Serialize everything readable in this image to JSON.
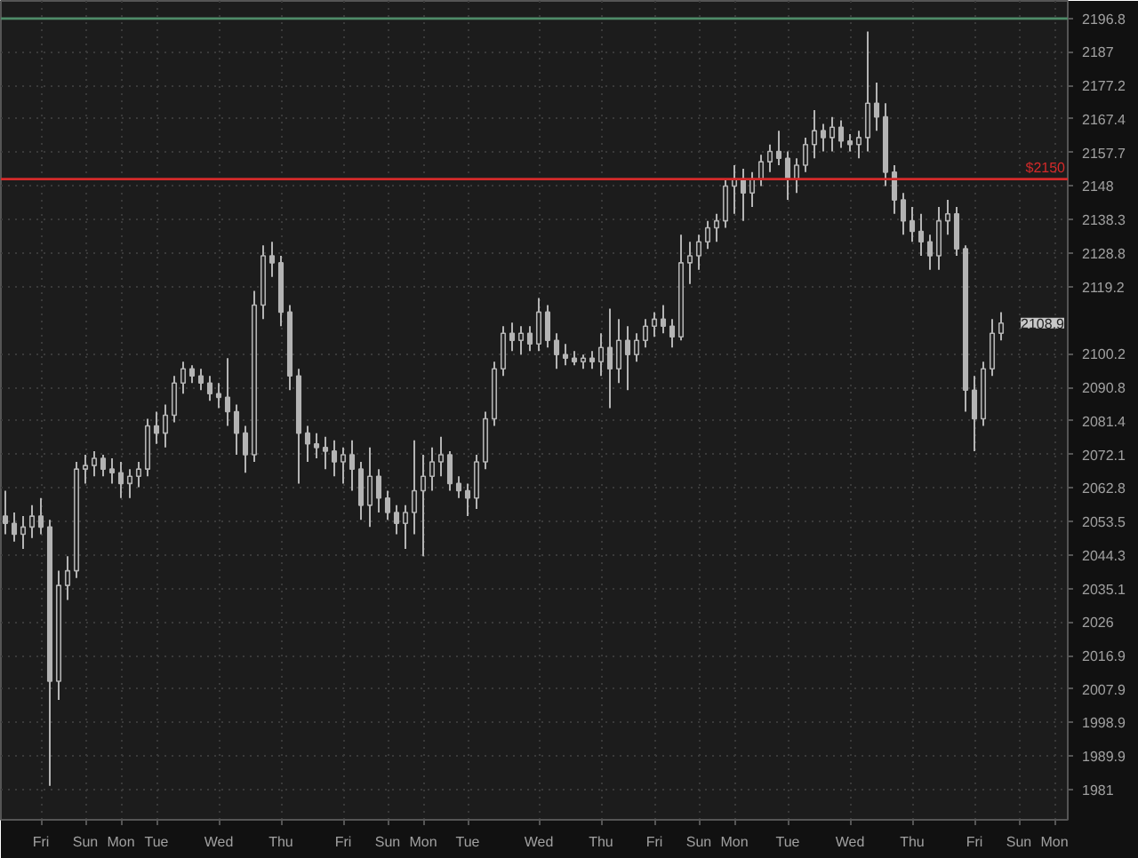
{
  "chart_data": {
    "type": "candlestick",
    "color": "#b4b4b4",
    "log": true,
    "grid": true,
    "categories": [
      null,
      null,
      null,
      null,
      "Fri",
      null,
      null,
      null,
      null,
      "Sun",
      null,
      null,
      null,
      "Mon",
      null,
      null,
      null,
      "Tue",
      null,
      null,
      null,
      null,
      null,
      null,
      "Wed",
      null,
      null,
      null,
      null,
      null,
      null,
      "Thu",
      null,
      null,
      null,
      null,
      null,
      null,
      "Fri",
      null,
      null,
      null,
      null,
      "Sun",
      null,
      null,
      null,
      "Mon",
      null,
      null,
      null,
      null,
      "Tue",
      null,
      null,
      null,
      null,
      null,
      null,
      null,
      "Wed",
      null,
      null,
      null,
      null,
      null,
      null,
      "Thu",
      null,
      null,
      null,
      null,
      null,
      "Fri",
      null,
      null,
      null,
      null,
      "Sun",
      null,
      null,
      null,
      "Mon",
      null,
      null,
      null,
      null,
      null,
      "Tue",
      null,
      null,
      null,
      null,
      null,
      null,
      "Wed",
      null,
      null,
      null,
      null,
      null,
      null,
      "Thu",
      null,
      null,
      null,
      null,
      null,
      null,
      "Fri",
      null,
      null,
      null,
      null,
      "Sun",
      null,
      null,
      null,
      "Mon",
      null
    ],
    "ohlc": [
      [
        2055,
        2062,
        2050,
        2053
      ],
      [
        2053,
        2056,
        2048,
        2050
      ],
      [
        2050,
        2055,
        2046,
        2052
      ],
      [
        2052,
        2058,
        2049,
        2055
      ],
      [
        2055,
        2060,
        2050,
        2052
      ],
      [
        2052,
        2054,
        1982,
        2010
      ],
      [
        2010,
        2040,
        2005,
        2036
      ],
      [
        2036,
        2044,
        2032,
        2040
      ],
      [
        2040,
        2070,
        2038,
        2068
      ],
      [
        2068,
        2072,
        2064,
        2069
      ],
      [
        2069,
        2073,
        2066,
        2071
      ],
      [
        2071,
        2072,
        2066,
        2068
      ],
      [
        2068,
        2071,
        2064,
        2067
      ],
      [
        2067,
        2070,
        2060,
        2064
      ],
      [
        2064,
        2068,
        2060,
        2066
      ],
      [
        2066,
        2070,
        2063,
        2068
      ],
      [
        2068,
        2082,
        2066,
        2080
      ],
      [
        2080,
        2084,
        2075,
        2078
      ],
      [
        2078,
        2086,
        2074,
        2083
      ],
      [
        2083,
        2094,
        2081,
        2092
      ],
      [
        2092,
        2098,
        2089,
        2096
      ],
      [
        2096,
        2097,
        2092,
        2094
      ],
      [
        2094,
        2096,
        2090,
        2092
      ],
      [
        2092,
        2094,
        2087,
        2089
      ],
      [
        2089,
        2092,
        2085,
        2088
      ],
      [
        2088,
        2099,
        2080,
        2084
      ],
      [
        2084,
        2086,
        2072,
        2078
      ],
      [
        2078,
        2080,
        2067,
        2072
      ],
      [
        2072,
        2118,
        2070,
        2114
      ],
      [
        2114,
        2131,
        2110,
        2128
      ],
      [
        2128,
        2132,
        2122,
        2126
      ],
      [
        2126,
        2128,
        2108,
        2112
      ],
      [
        2112,
        2114,
        2090,
        2094
      ],
      [
        2094,
        2096,
        2064,
        2078
      ],
      [
        2078,
        2080,
        2070,
        2075
      ],
      [
        2075,
        2078,
        2071,
        2074
      ],
      [
        2074,
        2077,
        2068,
        2073
      ],
      [
        2073,
        2076,
        2066,
        2070
      ],
      [
        2070,
        2074,
        2064,
        2072
      ],
      [
        2072,
        2076,
        2062,
        2068
      ],
      [
        2068,
        2070,
        2054,
        2058
      ],
      [
        2058,
        2074,
        2052,
        2066
      ],
      [
        2066,
        2068,
        2056,
        2060
      ],
      [
        2060,
        2062,
        2054,
        2056
      ],
      [
        2056,
        2058,
        2050,
        2053
      ],
      [
        2053,
        2058,
        2046,
        2056
      ],
      [
        2056,
        2076,
        2050,
        2062
      ],
      [
        2062,
        2072,
        2044,
        2066
      ],
      [
        2066,
        2074,
        2062,
        2070
      ],
      [
        2070,
        2077,
        2066,
        2072
      ],
      [
        2072,
        2073,
        2062,
        2064
      ],
      [
        2064,
        2066,
        2060,
        2062
      ],
      [
        2062,
        2064,
        2055,
        2060
      ],
      [
        2060,
        2072,
        2057,
        2070
      ],
      [
        2070,
        2084,
        2068,
        2082
      ],
      [
        2082,
        2098,
        2080,
        2096
      ],
      [
        2096,
        2108,
        2094,
        2106
      ],
      [
        2106,
        2109,
        2101,
        2104
      ],
      [
        2104,
        2108,
        2100,
        2106
      ],
      [
        2106,
        2108,
        2101,
        2103
      ],
      [
        2103,
        2116,
        2101,
        2112
      ],
      [
        2112,
        2114,
        2102,
        2104
      ],
      [
        2104,
        2106,
        2096,
        2100
      ],
      [
        2100,
        2103,
        2097,
        2099
      ],
      [
        2099,
        2101,
        2097,
        2098
      ],
      [
        2098,
        2100,
        2096,
        2099
      ],
      [
        2099,
        2101,
        2096,
        2098
      ],
      [
        2098,
        2106,
        2094,
        2102
      ],
      [
        2102,
        2113,
        2085,
        2096
      ],
      [
        2096,
        2110,
        2092,
        2104
      ],
      [
        2104,
        2108,
        2090,
        2100
      ],
      [
        2100,
        2106,
        2098,
        2104
      ],
      [
        2104,
        2110,
        2102,
        2108
      ],
      [
        2108,
        2112,
        2105,
        2110
      ],
      [
        2110,
        2114,
        2106,
        2108
      ],
      [
        2108,
        2110,
        2102,
        2105
      ],
      [
        2105,
        2134,
        2104,
        2126
      ],
      [
        2126,
        2132,
        2120,
        2128
      ],
      [
        2128,
        2134,
        2124,
        2132
      ],
      [
        2132,
        2138,
        2130,
        2136
      ],
      [
        2136,
        2140,
        2132,
        2138
      ],
      [
        2138,
        2150,
        2136,
        2148
      ],
      [
        2148,
        2154,
        2140,
        2150
      ],
      [
        2150,
        2153,
        2138,
        2146
      ],
      [
        2146,
        2152,
        2142,
        2150
      ],
      [
        2150,
        2157,
        2148,
        2155
      ],
      [
        2155,
        2160,
        2152,
        2158
      ],
      [
        2158,
        2164,
        2154,
        2156
      ],
      [
        2156,
        2158,
        2144,
        2150
      ],
      [
        2150,
        2156,
        2146,
        2154
      ],
      [
        2154,
        2162,
        2152,
        2160
      ],
      [
        2160,
        2170,
        2156,
        2164
      ],
      [
        2164,
        2166,
        2158,
        2162
      ],
      [
        2162,
        2168,
        2158,
        2165
      ],
      [
        2165,
        2167,
        2159,
        2161
      ],
      [
        2161,
        2163,
        2158,
        2160
      ],
      [
        2160,
        2164,
        2156,
        2162
      ],
      [
        2162,
        2193,
        2158,
        2172
      ],
      [
        2172,
        2178,
        2164,
        2168
      ],
      [
        2168,
        2172,
        2148,
        2152
      ],
      [
        2152,
        2154,
        2140,
        2144
      ],
      [
        2144,
        2146,
        2134,
        2138
      ],
      [
        2138,
        2142,
        2132,
        2135
      ],
      [
        2135,
        2140,
        2128,
        2132
      ],
      [
        2132,
        2134,
        2124,
        2128
      ],
      [
        2128,
        2142,
        2124,
        2138
      ],
      [
        2138,
        2144,
        2134,
        2140
      ],
      [
        2140,
        2142,
        2128,
        2130
      ],
      [
        2130,
        2131,
        2084,
        2090
      ],
      [
        2090,
        2094,
        2073,
        2082
      ],
      [
        2082,
        2098,
        2080,
        2096
      ],
      [
        2096,
        2110,
        2094,
        2106
      ],
      [
        2106,
        2112,
        2104,
        2108.9
      ],
      null,
      null,
      null,
      null,
      null,
      null,
      null
    ],
    "ylim": [
      1973,
      2202
    ],
    "yticks": [
      2196.8,
      2187,
      2177.2,
      2167.4,
      2157.7,
      2148,
      2138.3,
      2128.8,
      2119.2,
      2100.2,
      2090.8,
      2081.4,
      2072.1,
      2062.8,
      2053.5,
      2044.3,
      2035.1,
      2026,
      2016.9,
      2007.9,
      1998.9,
      1989.9,
      1981
    ],
    "ref_lines": [
      {
        "axis": "y",
        "value": 2196.8,
        "color": "#4e8a68"
      },
      {
        "axis": "y",
        "value": 2150,
        "label": "$2150",
        "color": "#d42a2a"
      }
    ],
    "annotations": [
      "2108.9"
    ]
  }
}
